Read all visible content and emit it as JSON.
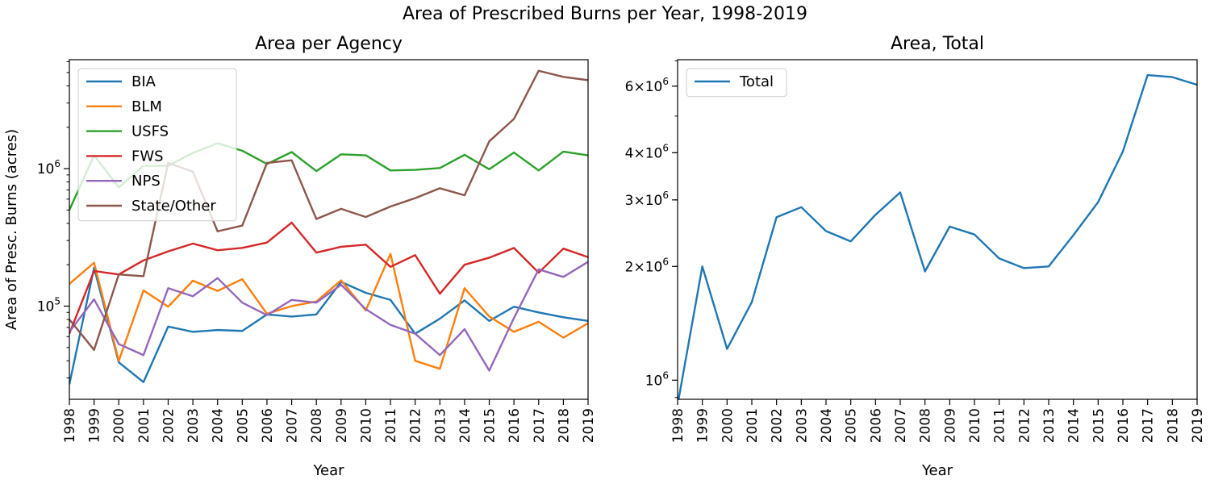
{
  "figure": {
    "suptitle": "Area of Prescribed Burns per Year, 1998-2019"
  },
  "chart_data": [
    {
      "type": "line",
      "title": "Area per Agency",
      "xlabel": "Year",
      "ylabel": "Area of Presc. Burns (acres)",
      "yscale": "log",
      "ylim": [
        21000,
        6200000
      ],
      "xlim": [
        1998,
        2019
      ],
      "yticks": [
        {
          "value": 100000,
          "label": "10^5"
        },
        {
          "value": 1000000,
          "label": "10^6"
        }
      ],
      "legend": "upper-left",
      "x": [
        1998,
        1999,
        2000,
        2001,
        2002,
        2003,
        2004,
        2005,
        2006,
        2007,
        2008,
        2009,
        2010,
        2011,
        2012,
        2013,
        2014,
        2015,
        2016,
        2017,
        2018,
        2019
      ],
      "series": [
        {
          "name": "BIA",
          "color": "#1f77b4",
          "values": [
            27000,
            190000,
            39000,
            28000,
            71000,
            65000,
            67000,
            66000,
            87000,
            84000,
            87000,
            150000,
            125000,
            111000,
            63000,
            81000,
            110000,
            78000,
            99000,
            90000,
            83000,
            78000
          ]
        },
        {
          "name": "BLM",
          "color": "#ff7f0e",
          "values": [
            145000,
            207000,
            40000,
            130000,
            99000,
            153000,
            129000,
            157000,
            88000,
            100000,
            108000,
            154000,
            93000,
            240000,
            40000,
            35000,
            135000,
            84000,
            65000,
            77000,
            59000,
            75000
          ]
        },
        {
          "name": "USFS",
          "color": "#2ca02c",
          "values": [
            500000,
            1250000,
            730000,
            1050000,
            1050000,
            1300000,
            1530000,
            1350000,
            1080000,
            1320000,
            960000,
            1270000,
            1250000,
            970000,
            980000,
            1010000,
            1260000,
            990000,
            1310000,
            970000,
            1330000,
            1250000
          ]
        },
        {
          "name": "FWS",
          "color": "#d62728",
          "values": [
            63000,
            180000,
            170000,
            215000,
            250000,
            285000,
            255000,
            265000,
            290000,
            405000,
            245000,
            270000,
            280000,
            193000,
            235000,
            123000,
            200000,
            225000,
            265000,
            175000,
            262000,
            227000
          ]
        },
        {
          "name": "NPS",
          "color": "#9467bd",
          "values": [
            65000,
            112000,
            53000,
            44000,
            135000,
            118000,
            160000,
            106000,
            86000,
            111000,
            106000,
            143000,
            95000,
            73000,
            63000,
            44000,
            68000,
            34000,
            82000,
            185000,
            163000,
            210000
          ]
        },
        {
          "name": "State/Other",
          "color": "#8c564b",
          "values": [
            80000,
            48000,
            170000,
            165000,
            1100000,
            950000,
            350000,
            385000,
            1100000,
            1150000,
            430000,
            510000,
            445000,
            530000,
            610000,
            720000,
            640000,
            1580000,
            2300000,
            5150000,
            4650000,
            4400000
          ]
        }
      ]
    },
    {
      "type": "line",
      "title": "Area, Total",
      "xlabel": "Year",
      "ylabel": "",
      "yscale": "log",
      "ylim": [
        890000,
        7050000
      ],
      "xlim": [
        1998,
        2019
      ],
      "yticks": [
        {
          "value": 1000000,
          "label": "10^6"
        },
        {
          "value": 2000000,
          "label": "2×10^6"
        },
        {
          "value": 3000000,
          "label": "3×10^6"
        },
        {
          "value": 4000000,
          "label": "4×10^6"
        },
        {
          "value": 6000000,
          "label": "6×10^6"
        }
      ],
      "legend": "upper-left",
      "x": [
        1998,
        1999,
        2000,
        2001,
        2002,
        2003,
        2004,
        2005,
        2006,
        2007,
        2008,
        2009,
        2010,
        2011,
        2012,
        2013,
        2014,
        2015,
        2016,
        2017,
        2018,
        2019
      ],
      "series": [
        {
          "name": "Total",
          "color": "#1f77b4",
          "values": [
            860000,
            2000000,
            1210000,
            1610000,
            2700000,
            2870000,
            2480000,
            2330000,
            2740000,
            3140000,
            1940000,
            2550000,
            2430000,
            2100000,
            1980000,
            2000000,
            2420000,
            2960000,
            4030000,
            6420000,
            6340000,
            6050000
          ]
        }
      ]
    }
  ]
}
